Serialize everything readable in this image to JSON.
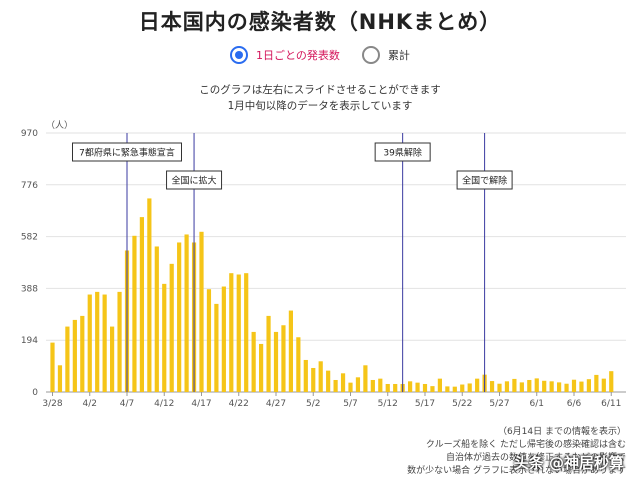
{
  "page": {
    "title": "日本国内の感染者数（NHKまとめ）",
    "radio_daily": "1日ごとの発表数",
    "radio_cumulative": "累計",
    "note_line1": "このグラフは左右にスライドさせることができます",
    "note_line2": "1月中旬以降のデータを表示しています",
    "footnote_line1": "（6月14日 までの情報を表示）",
    "footnote_line2": "クルーズ船を除く ただし帰宅後の感染確認は含む",
    "footnote_line3": "自治体が過去の数値を修正するなどの影響で",
    "footnote_line4": "数が少ない場合 グラフに表示されない場合があります",
    "watermark": "头条 @神居秒算",
    "accent_color": "#2a6cf0",
    "bar_color": "#f5c518"
  },
  "chart_data": {
    "type": "bar",
    "ylabel": "（人）",
    "ylim": [
      0,
      970
    ],
    "yticks": [
      0,
      194,
      388,
      582,
      776,
      970
    ],
    "xtick_labels": [
      "3/28",
      "4/2",
      "4/7",
      "4/12",
      "4/17",
      "4/22",
      "4/27",
      "5/2",
      "5/7",
      "5/12",
      "5/17",
      "5/22",
      "5/27",
      "6/1",
      "6/6",
      "6/11"
    ],
    "first_date": "3/28",
    "grid": true,
    "values": [
      185,
      100,
      245,
      270,
      285,
      365,
      375,
      365,
      245,
      375,
      530,
      585,
      655,
      725,
      545,
      405,
      480,
      560,
      590,
      560,
      600,
      385,
      330,
      395,
      445,
      440,
      445,
      225,
      180,
      285,
      225,
      250,
      305,
      205,
      120,
      90,
      115,
      80,
      45,
      70,
      35,
      55,
      100,
      45,
      50,
      30,
      30,
      30,
      40,
      35,
      30,
      22,
      50,
      21,
      20,
      28,
      32,
      50,
      65,
      41,
      31,
      40,
      49,
      36,
      45,
      51,
      42,
      40,
      36,
      31,
      46,
      39,
      48,
      64,
      50,
      78
    ],
    "annotations": [
      {
        "label": "7都府県に緊急事態宣言",
        "date": "4/7"
      },
      {
        "label": "全国に拡大",
        "date": "4/16"
      },
      {
        "label": "39県解除",
        "date": "5/14"
      },
      {
        "label": "全国で解除",
        "date": "5/25"
      }
    ]
  }
}
